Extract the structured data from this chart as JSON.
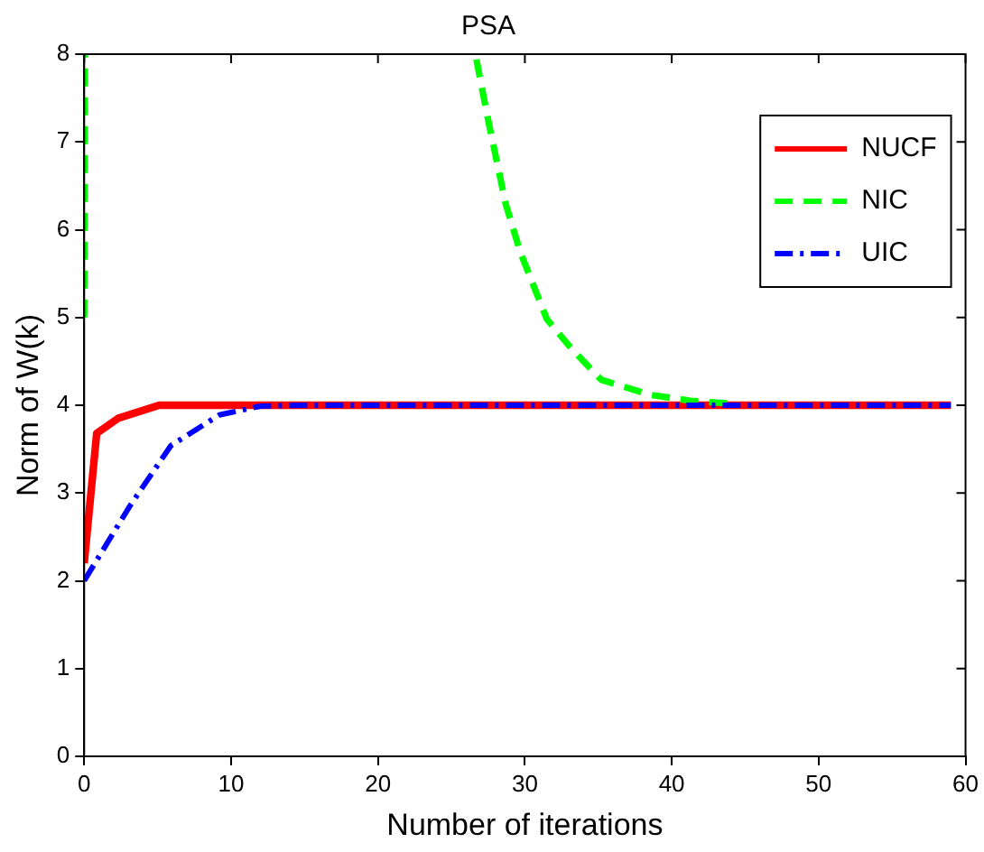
{
  "chart_data": {
    "type": "line",
    "title": "PSA",
    "xlabel": "Number of iterations",
    "ylabel": "Norm of W(k)",
    "xlim": [
      0,
      60
    ],
    "xticks": [
      0,
      10,
      20,
      30,
      40,
      50,
      60
    ],
    "ylim": [
      0,
      8
    ],
    "yticks": [
      0,
      1,
      2,
      3,
      4,
      5,
      6,
      7,
      8
    ],
    "grid": false,
    "legend": "top right",
    "marker": "none",
    "series": [
      {
        "name": "NUCF",
        "color": "#ff0000",
        "line_style": "solid",
        "x": [
          0,
          0.85,
          2.3,
          5.1,
          10,
          20,
          30,
          40,
          50,
          59
        ],
        "values": [
          2.2,
          3.68,
          3.85,
          4.0,
          4.0,
          4.0,
          4.0,
          4.0,
          4.0,
          4.0
        ]
      },
      {
        "name": "NIC",
        "color": "#00ff00",
        "line_style": "dashed",
        "x": [
          0,
          0.05,
          10,
          26.7,
          27.5,
          28.7,
          29.7,
          31.5,
          33.2,
          35.2,
          38.5,
          41.3,
          44
        ],
        "values": [
          5,
          8,
          null,
          7.94,
          7.25,
          6.29,
          5.74,
          4.98,
          4.64,
          4.29,
          4.12,
          4.05,
          4.02
        ]
      },
      {
        "name": "UIC",
        "color": "#0000ff",
        "line_style": "dashdot",
        "x": [
          0,
          3.1,
          5.9,
          9.2,
          12,
          15,
          20,
          30,
          40,
          50,
          59
        ],
        "values": [
          2.0,
          2.85,
          3.54,
          3.89,
          3.99,
          4.0,
          4.0,
          4.0,
          4.0,
          4.0,
          4.0
        ]
      }
    ]
  }
}
